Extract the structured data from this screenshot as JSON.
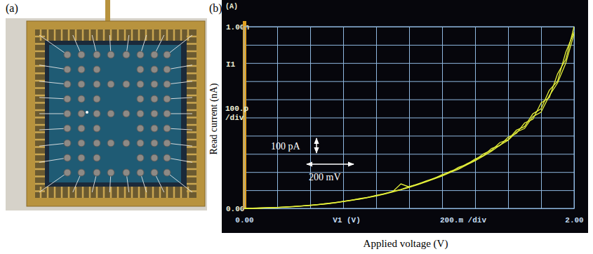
{
  "figure": {
    "panel_labels": [
      "(a)",
      "(b)"
    ]
  },
  "chart_data": {
    "type": "line",
    "x_label": "Applied voltage (V)",
    "y_label": "Read current (nA)",
    "x": [
      0,
      0.05,
      0.1,
      0.15,
      0.2,
      0.25,
      0.3,
      0.35,
      0.4,
      0.45,
      0.5,
      0.55,
      0.6,
      0.65,
      0.7,
      0.75,
      0.8,
      0.85,
      0.9,
      0.95,
      1.0,
      1.05,
      1.1,
      1.15,
      1.2,
      1.25,
      1.3,
      1.35,
      1.4,
      1.45,
      1.5,
      1.55,
      1.6,
      1.65,
      1.7,
      1.75,
      1.8,
      1.85,
      1.9,
      1.95,
      2.0
    ],
    "series": [
      {
        "color": "#e4ef3a",
        "values": [
          0,
          0.001,
          0.002,
          0.003,
          0.005,
          0.008,
          0.01,
          0.014,
          0.017,
          0.022,
          0.026,
          0.032,
          0.038,
          0.046,
          0.052,
          0.061,
          0.07,
          0.082,
          0.092,
          0.135,
          0.118,
          0.134,
          0.148,
          0.166,
          0.182,
          0.204,
          0.22,
          0.246,
          0.266,
          0.3,
          0.32,
          0.362,
          0.378,
          0.43,
          0.45,
          0.52,
          0.548,
          0.65,
          0.7,
          0.86,
          0.97
        ]
      },
      {
        "color": "#e4ef3a",
        "values": [
          0,
          0.001,
          0.002,
          0.004,
          0.005,
          0.007,
          0.011,
          0.013,
          0.018,
          0.021,
          0.027,
          0.031,
          0.039,
          0.045,
          0.054,
          0.06,
          0.072,
          0.08,
          0.094,
          0.104,
          0.12,
          0.132,
          0.15,
          0.164,
          0.186,
          0.2,
          0.226,
          0.242,
          0.272,
          0.29,
          0.33,
          0.346,
          0.392,
          0.412,
          0.47,
          0.49,
          0.58,
          0.61,
          0.74,
          0.82,
          1.0
        ]
      },
      {
        "color": "#e4ef3a",
        "values": [
          0,
          0.0,
          0.002,
          0.003,
          0.004,
          0.007,
          0.009,
          0.013,
          0.016,
          0.021,
          0.025,
          0.03,
          0.037,
          0.044,
          0.051,
          0.059,
          0.068,
          0.079,
          0.09,
          0.103,
          0.115,
          0.13,
          0.145,
          0.162,
          0.178,
          0.198,
          0.216,
          0.24,
          0.262,
          0.288,
          0.315,
          0.348,
          0.375,
          0.42,
          0.44,
          0.505,
          0.53,
          0.62,
          0.69,
          0.8,
          0.96
        ]
      }
    ],
    "xlim": [
      0,
      2
    ],
    "ylim": [
      0,
      1
    ],
    "xticks": [
      {
        "value": 0,
        "label": "0.00"
      },
      {
        "value": 0.2,
        "label": null
      },
      {
        "value": 0.4,
        "label": null
      },
      {
        "value": 0.6,
        "label": null
      },
      {
        "value": 0.8,
        "label": null
      },
      {
        "value": 1.0,
        "label": null
      },
      {
        "value": 1.2,
        "label": null
      },
      {
        "value": 1.4,
        "label": null
      },
      {
        "value": 1.6,
        "label": null
      },
      {
        "value": 1.8,
        "label": null
      },
      {
        "value": 2.0,
        "label": "2.00"
      }
    ],
    "yticks": [
      {
        "value": 0,
        "label": "0.00"
      },
      {
        "value": 0.1,
        "label": null
      },
      {
        "value": 0.2,
        "label": null
      },
      {
        "value": 0.3,
        "label": null
      },
      {
        "value": 0.4,
        "label": null
      },
      {
        "value": 0.5,
        "label": null
      },
      {
        "value": 0.6,
        "label": null
      },
      {
        "value": 0.7,
        "label": null
      },
      {
        "value": 0.8,
        "label": null
      },
      {
        "value": 0.9,
        "label": null
      },
      {
        "value": 1.0,
        "label": "1.00n"
      }
    ],
    "grid": true,
    "line_style": "solid",
    "annotations": [
      {
        "text": "(A)"
      },
      {
        "text": "I1"
      },
      {
        "text": "100.p"
      },
      {
        "text": "/div"
      },
      {
        "text": "V1 (V)"
      },
      {
        "text": "200.m /div"
      },
      {
        "text": "100 pA"
      },
      {
        "text": "200 mV"
      }
    ]
  }
}
